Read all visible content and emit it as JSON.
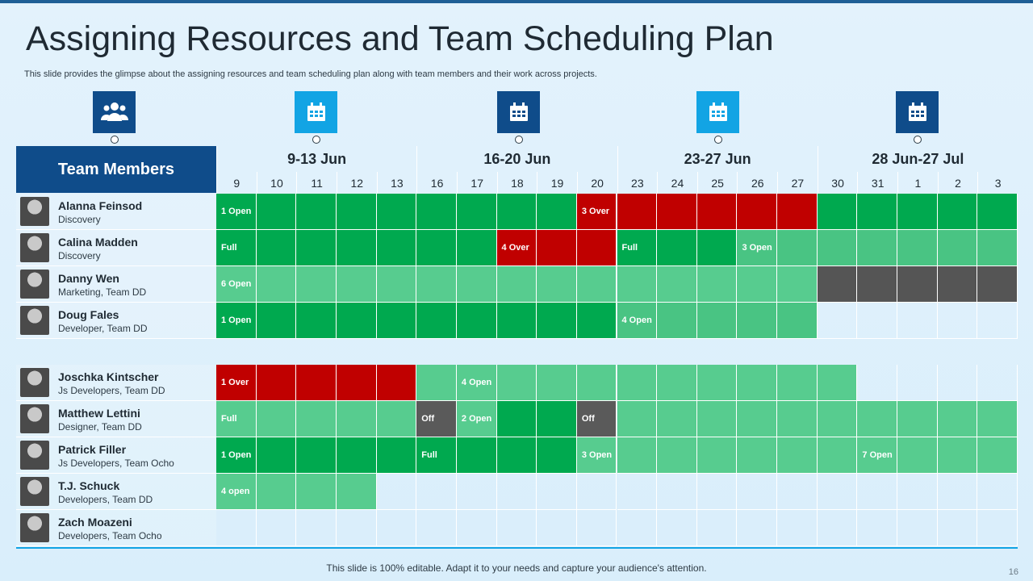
{
  "slide": {
    "title": "Assigning Resources and Team Scheduling Plan",
    "subtitle": "This slide provides the glimpse about the assigning resources and team scheduling plan along with team members and their work across projects.",
    "footer": "This slide is 100% editable. Adapt it to your needs and capture your audience's attention.",
    "page_number": "16"
  },
  "icons": [
    "team-icon",
    "calendar-icon",
    "calendar-icon",
    "calendar-icon",
    "calendar-icon"
  ],
  "colors": {
    "dark_blue": "#0f4c8a",
    "light_blue": "#12a4e4",
    "green": "#00a94f",
    "light_green": "#57cc8f",
    "red": "#c00000",
    "gray": "#555555"
  },
  "header": {
    "team_members": "Team Members",
    "weeks": [
      "9-13 Jun",
      "16-20 Jun",
      "23-27 Jun",
      "28 Jun-27 Jul"
    ],
    "days": [
      "9",
      "10",
      "11",
      "12",
      "13",
      "16",
      "17",
      "18",
      "19",
      "20",
      "23",
      "24",
      "25",
      "26",
      "27",
      "30",
      "31",
      "1",
      "2",
      "3"
    ]
  },
  "members": [
    {
      "name": "Alanna Feinsod",
      "role": "Discovery"
    },
    {
      "name": "Calina Madden",
      "role": "Discovery"
    },
    {
      "name": "Danny Wen",
      "role": "Marketing, Team DD"
    },
    {
      "name": "Doug Fales",
      "role": "Developer, Team DD"
    },
    {
      "name": "Joschka Kintscher",
      "role": "Js Developers, Team DD"
    },
    {
      "name": "Matthew Lettini",
      "role": "Designer, Team DD"
    },
    {
      "name": "Patrick Filler",
      "role": "Js Developers, Team Ocho"
    },
    {
      "name": "T.J. Schuck",
      "role": "Developers, Team DD"
    },
    {
      "name": "Zach Moazeni",
      "role": "Developers, Team Ocho"
    }
  ],
  "schedule": [
    [
      "g:1 Open",
      "g",
      "g",
      "g",
      "g",
      "g",
      "g",
      "g",
      "g",
      "r:3 Over",
      "r",
      "r",
      "r",
      "r",
      "r",
      "g",
      "g",
      "g",
      "g",
      "g"
    ],
    [
      "g:Full",
      "g",
      "g",
      "g",
      "g",
      "g",
      "g",
      "r:4 Over",
      "r",
      "r",
      "g:Full",
      "g",
      "g",
      "m:3 Open",
      "m",
      "m",
      "m",
      "m",
      "m",
      "m"
    ],
    [
      "l:6 Open",
      "l",
      "l",
      "l",
      "l",
      "l",
      "l",
      "l",
      "l",
      "l",
      "l",
      "l",
      "l",
      "l",
      "l",
      "k",
      "k",
      "k",
      "k",
      "k"
    ],
    [
      "g:1 Open",
      "g",
      "g",
      "g",
      "g",
      "g",
      "g",
      "g",
      "g",
      "g",
      "m:4 Open",
      "m",
      "m",
      "m",
      "m",
      "e",
      "e",
      "e",
      "e",
      "e"
    ],
    [
      "r:1 Over",
      "r",
      "r",
      "r",
      "r",
      "l",
      "l:4 Open",
      "l",
      "l",
      "l",
      "l",
      "l",
      "l",
      "l",
      "l",
      "l",
      "e",
      "e",
      "e",
      "e"
    ],
    [
      "l:Full",
      "l",
      "l",
      "l",
      "l",
      "o:Off",
      "l:2 Open",
      "g",
      "g",
      "o:Off",
      "l",
      "l",
      "l",
      "l",
      "l",
      "l",
      "l",
      "l",
      "l",
      "l"
    ],
    [
      "g:1 Open",
      "g",
      "g",
      "g",
      "g",
      "g:Full",
      "g",
      "g",
      "g",
      "l:3 Open",
      "l",
      "l",
      "l",
      "l",
      "l",
      "l",
      "l:7 Open",
      "l",
      "l",
      "l"
    ],
    [
      "l:4 open",
      "l",
      "l",
      "l",
      "e",
      "e",
      "e",
      "e",
      "e",
      "e",
      "e",
      "e",
      "e",
      "e",
      "e",
      "e",
      "e",
      "e",
      "e",
      "e"
    ],
    [
      "e",
      "e",
      "e",
      "e",
      "e",
      "e",
      "e",
      "e",
      "e",
      "e",
      "e",
      "e",
      "e",
      "e",
      "e",
      "e",
      "e",
      "e",
      "e",
      "e"
    ]
  ]
}
